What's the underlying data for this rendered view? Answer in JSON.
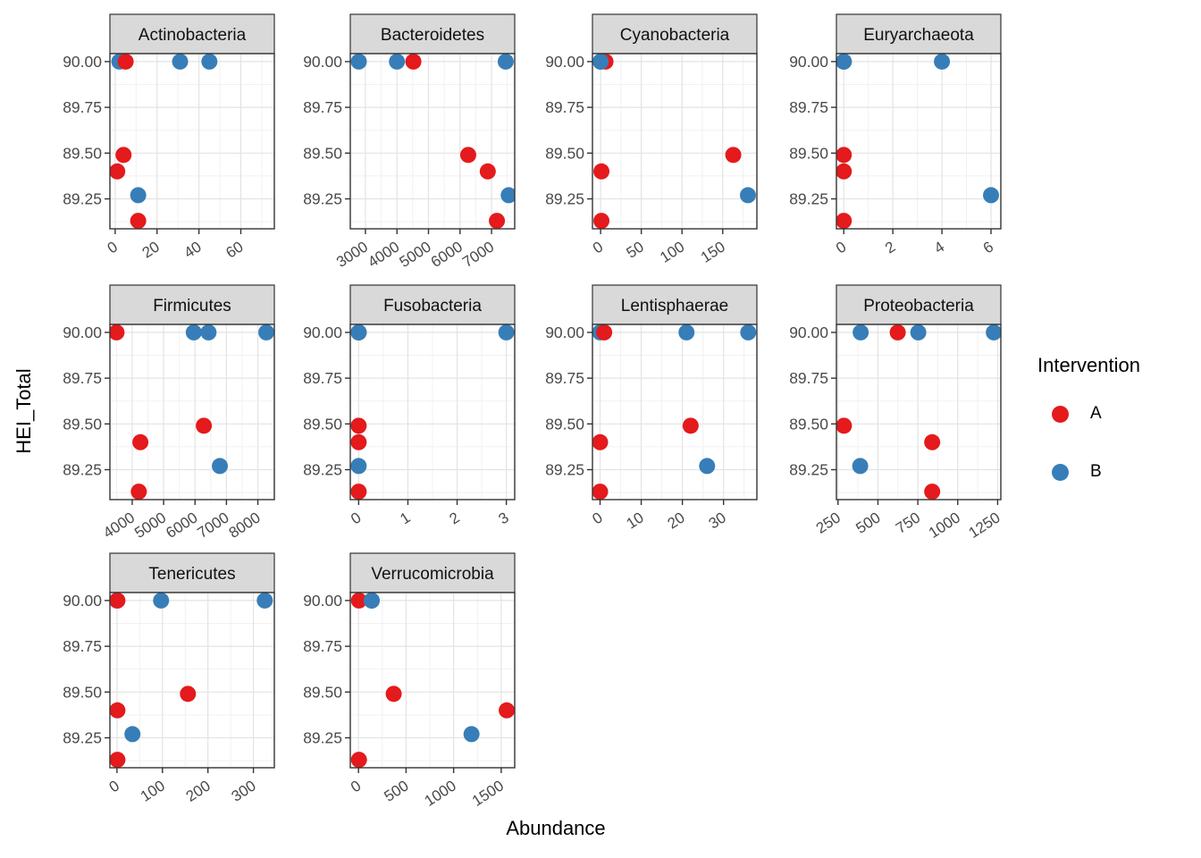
{
  "chart_data": {
    "type": "scatter",
    "title": "",
    "xlabel": "Abundance",
    "ylabel": "HEI_Total",
    "grid": true,
    "legend": {
      "title": "Intervention",
      "position": "right",
      "entries": [
        {
          "label": "A",
          "color": "#E41A1C"
        },
        {
          "label": "B",
          "color": "#377EB8"
        }
      ]
    },
    "style": {
      "strip_fill": "#D9D9D9",
      "border_color": "#333333",
      "grid_major": "#E3E3E3",
      "grid_minor": "#F1F1F1",
      "axis_text_color": "#4A4A4A",
      "point_radius": 9
    },
    "y_domain": [
      89.0865,
      90.0435
    ],
    "y_ticks": [
      90.0,
      89.75,
      89.5,
      89.25
    ],
    "y_tick_labels": [
      "90.00",
      "89.75",
      "89.50",
      "89.25"
    ],
    "y_minor": [
      89.875,
      89.625,
      89.375,
      89.125
    ],
    "facets": [
      {
        "name": "Actinobacteria",
        "x_domain": [
          -2.5,
          76
        ],
        "x_ticks": [
          0,
          20,
          40,
          60
        ],
        "x_tick_labels": [
          "0",
          "20",
          "40",
          "60"
        ],
        "x_minor": [
          10,
          30,
          50,
          70
        ],
        "draw_order": "BA",
        "series": {
          "A": [
            [
              5,
              90.0
            ],
            [
              4,
              89.49
            ],
            [
              1,
              89.4
            ],
            [
              11,
              89.13
            ]
          ],
          "B": [
            [
              2,
              90.0
            ],
            [
              31,
              90.0
            ],
            [
              45,
              90.0
            ],
            [
              11,
              89.27
            ]
          ]
        }
      },
      {
        "name": "Bacteroidetes",
        "x_domain": [
          2520,
          7735
        ],
        "x_ticks": [
          3000,
          4000,
          5000,
          6000,
          7000
        ],
        "x_tick_labels": [
          "3000",
          "4000",
          "5000",
          "6000",
          "7000"
        ],
        "x_minor": [
          3500,
          4500,
          5500,
          6500,
          7500
        ],
        "draw_order": "BA",
        "series": {
          "A": [
            [
              4520,
              90.0
            ],
            [
              6260,
              89.49
            ],
            [
              6880,
              89.4
            ],
            [
              7170,
              89.13
            ]
          ],
          "B": [
            [
              2790,
              90.0
            ],
            [
              4000,
              90.0
            ],
            [
              7450,
              90.0
            ],
            [
              7545,
              89.27
            ]
          ]
        }
      },
      {
        "name": "Cyanobacteria",
        "x_domain": [
          -10,
          192
        ],
        "x_ticks": [
          0,
          50,
          100,
          150
        ],
        "x_tick_labels": [
          "0",
          "50",
          "100",
          "150"
        ],
        "x_minor": [
          25,
          75,
          125,
          175
        ],
        "draw_order": "AB",
        "series": {
          "A": [
            [
              6,
              90.0
            ],
            [
              163,
              89.49
            ],
            [
              1,
              89.4
            ],
            [
              1,
              89.13
            ]
          ],
          "B": [
            [
              0,
              90.0
            ],
            [
              0,
              90.0
            ],
            [
              0,
              90.0
            ],
            [
              181,
              89.27
            ]
          ]
        }
      },
      {
        "name": "Euryarchaeota",
        "x_domain": [
          -0.3,
          6.4
        ],
        "x_ticks": [
          0,
          2,
          4,
          6
        ],
        "x_tick_labels": [
          "0",
          "2",
          "4",
          "6"
        ],
        "x_minor": [
          1,
          3,
          5
        ],
        "draw_order": "AB",
        "series": {
          "A": [
            [
              0,
              90.0
            ],
            [
              0,
              89.49
            ],
            [
              0,
              89.4
            ],
            [
              0,
              89.13
            ]
          ],
          "B": [
            [
              0,
              90.0
            ],
            [
              0,
              90.0
            ],
            [
              4,
              90.0
            ],
            [
              6,
              89.27
            ]
          ]
        }
      },
      {
        "name": "Firmicutes",
        "x_domain": [
          3290,
          8525
        ],
        "x_ticks": [
          4000,
          5000,
          6000,
          7000,
          8000
        ],
        "x_tick_labels": [
          "4000",
          "5000",
          "6000",
          "7000",
          "8000"
        ],
        "x_minor": [
          3500,
          4500,
          5500,
          6500,
          7500,
          8500
        ],
        "draw_order": "BA",
        "series": {
          "A": [
            [
              3500,
              90.0
            ],
            [
              6280,
              89.49
            ],
            [
              4260,
              89.4
            ],
            [
              4210,
              89.13
            ]
          ],
          "B": [
            [
              5960,
              90.0
            ],
            [
              6430,
              90.0
            ],
            [
              8270,
              90.0
            ],
            [
              6790,
              89.27
            ]
          ]
        }
      },
      {
        "name": "Fusobacteria",
        "x_domain": [
          -0.17,
          3.17
        ],
        "x_ticks": [
          0,
          1,
          2,
          3
        ],
        "x_tick_labels": [
          "0",
          "1",
          "2",
          "3"
        ],
        "x_minor": [
          0.5,
          1.5,
          2.5
        ],
        "draw_order": "AB",
        "series": {
          "A": [
            [
              0,
              90.0
            ],
            [
              0,
              89.49
            ],
            [
              0,
              89.4
            ],
            [
              0,
              89.13
            ]
          ],
          "B": [
            [
              0,
              90.0
            ],
            [
              0,
              90.0
            ],
            [
              3,
              90.0
            ],
            [
              0,
              89.27
            ]
          ]
        }
      },
      {
        "name": "Lentisphaerae",
        "x_domain": [
          -1.85,
          38.1
        ],
        "x_ticks": [
          0,
          10,
          20,
          30
        ],
        "x_tick_labels": [
          "0",
          "10",
          "20",
          "30"
        ],
        "x_minor": [
          5,
          15,
          25,
          35
        ],
        "draw_order": "BA",
        "series": {
          "A": [
            [
              1,
              90.0
            ],
            [
              22,
              89.49
            ],
            [
              0,
              89.4
            ],
            [
              0,
              89.13
            ]
          ],
          "B": [
            [
              0,
              90.0
            ],
            [
              21,
              90.0
            ],
            [
              36,
              90.0
            ],
            [
              26,
              89.27
            ]
          ]
        }
      },
      {
        "name": "Proteobacteria",
        "x_domain": [
          240,
          1270
        ],
        "x_ticks": [
          250,
          500,
          750,
          1000,
          1250
        ],
        "x_tick_labels": [
          "250",
          "500",
          "750",
          "1000",
          "1250"
        ],
        "x_minor": [
          375,
          625,
          875,
          1125
        ],
        "draw_order": "BA",
        "series": {
          "A": [
            [
              624,
              90.0
            ],
            [
              287,
              89.49
            ],
            [
              840,
              89.4
            ],
            [
              840,
              89.13
            ]
          ],
          "B": [
            [
              392,
              90.0
            ],
            [
              753,
              90.0
            ],
            [
              1226,
              90.0
            ],
            [
              389,
              89.27
            ]
          ]
        }
      },
      {
        "name": "Tenericutes",
        "x_domain": [
          -15.5,
          346
        ],
        "x_ticks": [
          0,
          100,
          200,
          300
        ],
        "x_tick_labels": [
          "0",
          "100",
          "200",
          "300"
        ],
        "x_minor": [
          50,
          150,
          250
        ],
        "draw_order": "BA",
        "series": {
          "A": [
            [
              1,
              90.0
            ],
            [
              156,
              89.49
            ],
            [
              1,
              89.4
            ],
            [
              1,
              89.13
            ]
          ],
          "B": [
            [
              0,
              90.0
            ],
            [
              97,
              90.0
            ],
            [
              325,
              90.0
            ],
            [
              34,
              89.27
            ]
          ]
        }
      },
      {
        "name": "Verrucomicrobia",
        "x_domain": [
          -86,
          1642
        ],
        "x_ticks": [
          0,
          500,
          1000,
          1500
        ],
        "x_tick_labels": [
          "0",
          "500",
          "1000",
          "1500"
        ],
        "x_minor": [
          250,
          750,
          1250
        ],
        "draw_order": "AB",
        "series": {
          "A": [
            [
              5,
              90.0
            ],
            [
              370,
              89.49
            ],
            [
              1558,
              89.4
            ],
            [
              5,
              89.13
            ]
          ],
          "B": [
            [
              139,
              90.0
            ],
            [
              139,
              90.0
            ],
            [
              139,
              90.0
            ],
            [
              1188,
              89.27
            ]
          ]
        }
      }
    ]
  }
}
